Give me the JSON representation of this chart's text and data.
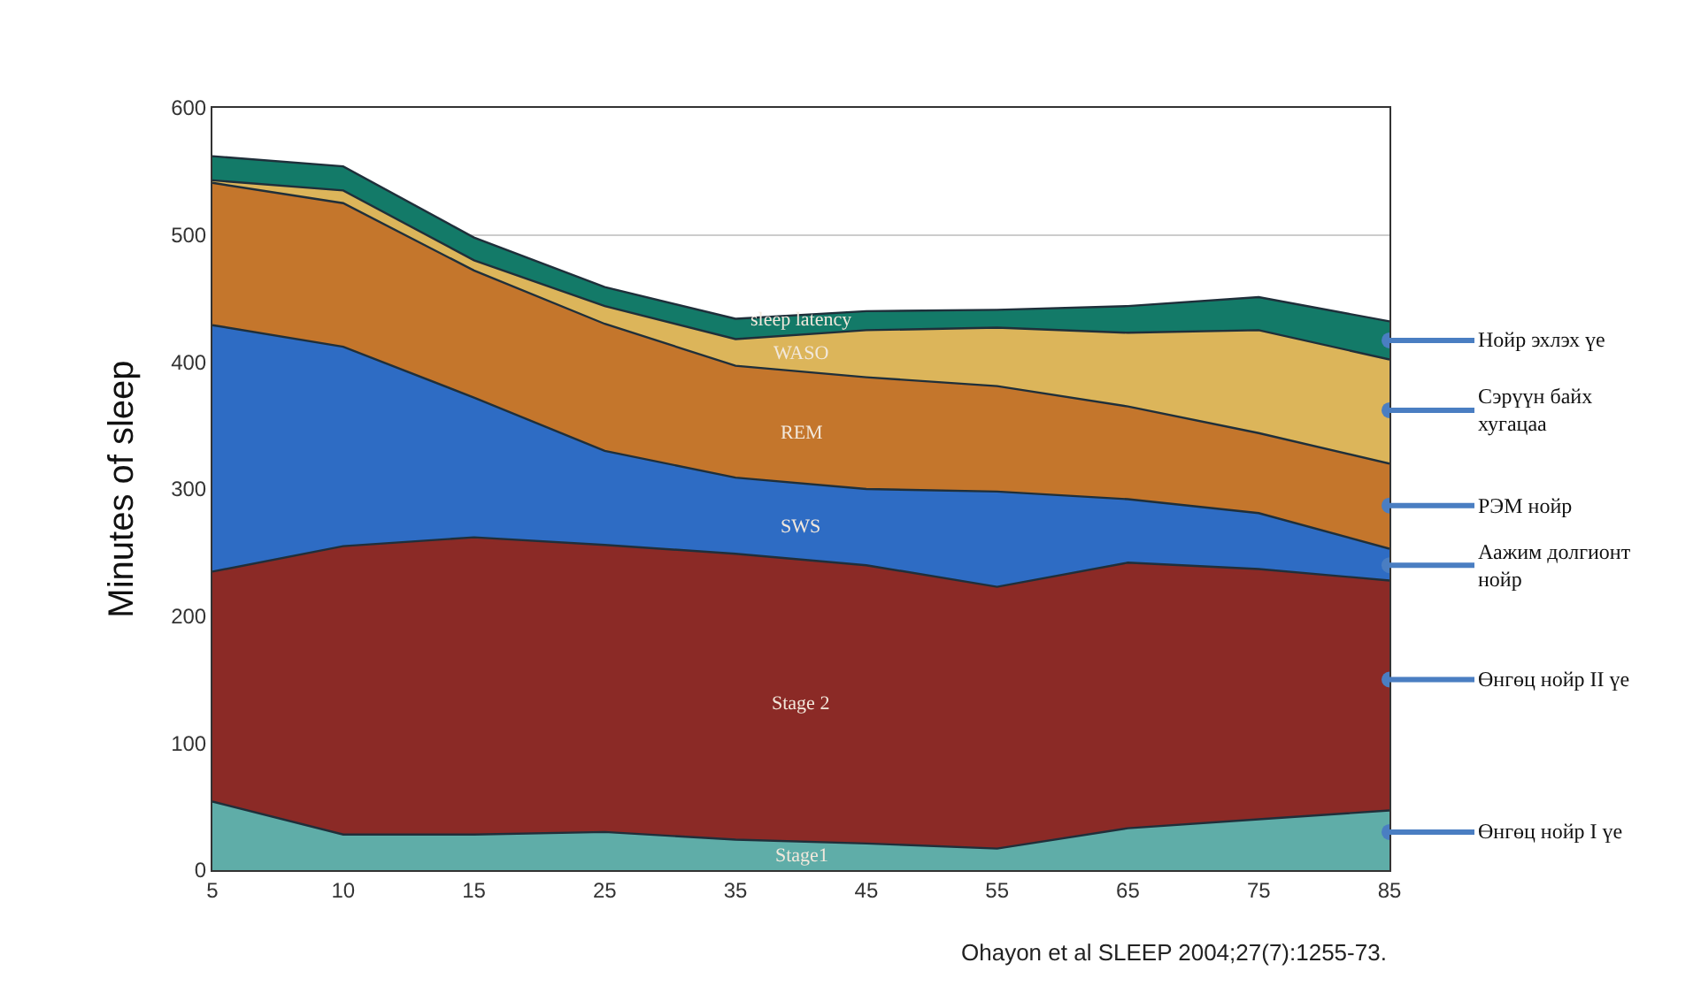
{
  "chart_data": {
    "type": "area",
    "stacked": true,
    "ylabel": "Minutes of sleep",
    "categories": [
      "5",
      "10",
      "15",
      "25",
      "35",
      "45",
      "55",
      "65",
      "75",
      "85"
    ],
    "series": [
      {
        "name": "Stage1",
        "color": "#5fada8",
        "values": [
          54,
          28,
          28,
          30,
          24,
          21,
          17,
          33,
          40,
          47
        ]
      },
      {
        "name": "Stage 2",
        "color": "#8b2a26",
        "values": [
          181,
          227,
          234,
          226,
          225,
          219,
          206,
          209,
          197,
          181
        ]
      },
      {
        "name": "SWS",
        "color": "#2e6cc4",
        "values": [
          194,
          157,
          110,
          74,
          60,
          60,
          75,
          50,
          44,
          25
        ]
      },
      {
        "name": "REM",
        "color": "#c4762c",
        "values": [
          112,
          113,
          100,
          100,
          88,
          88,
          83,
          73,
          63,
          67
        ]
      },
      {
        "name": "WASO",
        "color": "#dcb55a",
        "values": [
          2,
          10,
          8,
          14,
          21,
          37,
          46,
          58,
          81,
          82
        ]
      },
      {
        "name": "sleep latency",
        "color": "#137a68",
        "values": [
          19,
          19,
          18,
          15,
          16,
          15,
          14,
          21,
          26,
          30
        ]
      }
    ],
    "ylim": [
      0,
      600
    ],
    "yticks": [
      0,
      100,
      200,
      300,
      400,
      500,
      600
    ],
    "grid": "y",
    "legend": false,
    "annotations": [
      {
        "text": "Нойр эхлэх үе",
        "x": "85",
        "y": 417
      },
      {
        "text": "Сэрүүн байх\nхугацаа",
        "x": "85",
        "y": 362
      },
      {
        "text": "РЭМ нойр",
        "x": "85",
        "y": 287
      },
      {
        "text": "Аажим долгионт\nнойр",
        "x": "85",
        "y": 240
      },
      {
        "text": "Өнгөц нойр II үе",
        "x": "85",
        "y": 150
      },
      {
        "text": "Өнгөц нойр I үе",
        "x": "85",
        "y": 30
      },
      "Ohayon et al SLEEP 2004;27(7):1255-73."
    ]
  }
}
